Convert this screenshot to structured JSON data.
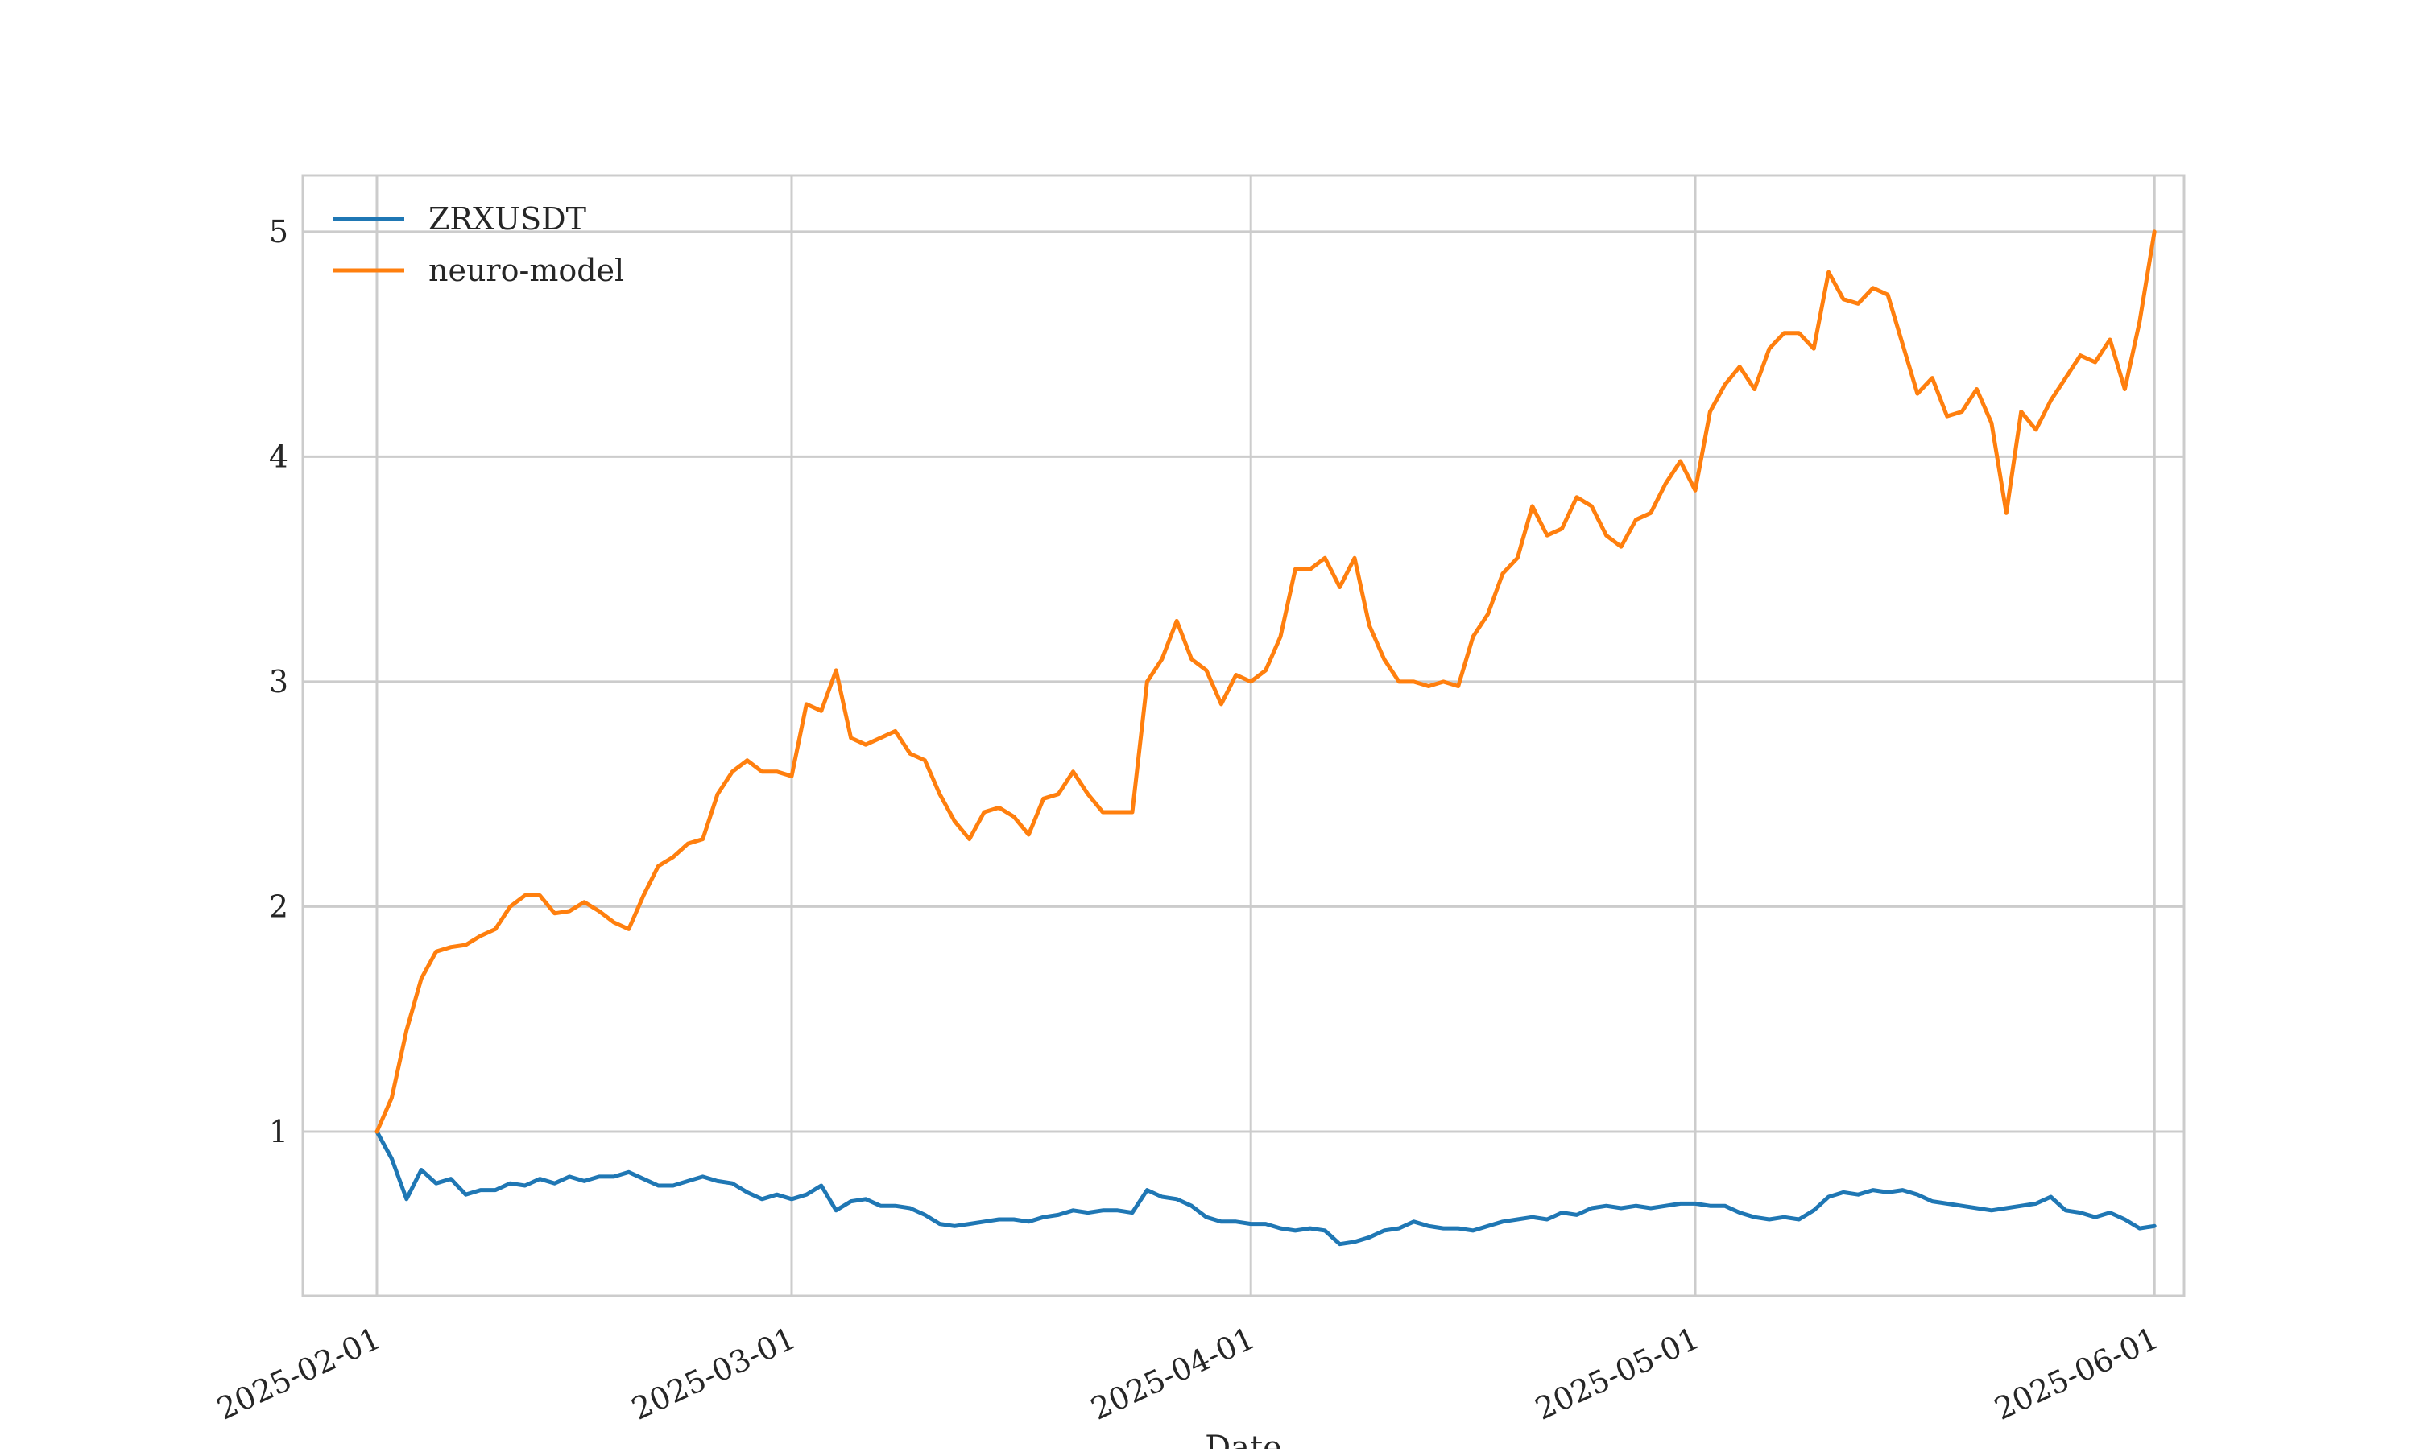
{
  "chart_data": {
    "type": "line",
    "title": "",
    "xlabel": "Date",
    "ylabel": "",
    "xlim": [
      "2025-01-27",
      "2025-06-03"
    ],
    "ylim": [
      0.27,
      5.25
    ],
    "x_ticks": [
      "2025-02-01",
      "2025-03-01",
      "2025-04-01",
      "2025-05-01",
      "2025-06-01"
    ],
    "y_ticks": [
      1,
      2,
      3,
      4,
      5
    ],
    "y_tick_labels": [
      "1",
      "2",
      "3",
      "4",
      "5"
    ],
    "grid": true,
    "legend_position": "upper-left",
    "series": [
      {
        "name": "ZRXUSDT",
        "color": "#1f77b4",
        "points": [
          [
            "2025-02-01",
            1.0
          ],
          [
            "2025-02-02",
            0.88
          ],
          [
            "2025-02-03",
            0.7
          ],
          [
            "2025-02-04",
            0.83
          ],
          [
            "2025-02-05",
            0.77
          ],
          [
            "2025-02-06",
            0.79
          ],
          [
            "2025-02-07",
            0.72
          ],
          [
            "2025-02-08",
            0.74
          ],
          [
            "2025-02-09",
            0.74
          ],
          [
            "2025-02-10",
            0.77
          ],
          [
            "2025-02-11",
            0.76
          ],
          [
            "2025-02-12",
            0.79
          ],
          [
            "2025-02-13",
            0.77
          ],
          [
            "2025-02-14",
            0.8
          ],
          [
            "2025-02-15",
            0.78
          ],
          [
            "2025-02-16",
            0.8
          ],
          [
            "2025-02-17",
            0.8
          ],
          [
            "2025-02-18",
            0.82
          ],
          [
            "2025-02-19",
            0.79
          ],
          [
            "2025-02-20",
            0.76
          ],
          [
            "2025-02-21",
            0.76
          ],
          [
            "2025-02-22",
            0.78
          ],
          [
            "2025-02-23",
            0.8
          ],
          [
            "2025-02-24",
            0.78
          ],
          [
            "2025-02-25",
            0.77
          ],
          [
            "2025-02-26",
            0.73
          ],
          [
            "2025-02-27",
            0.7
          ],
          [
            "2025-02-28",
            0.72
          ],
          [
            "2025-03-01",
            0.7
          ],
          [
            "2025-03-02",
            0.72
          ],
          [
            "2025-03-03",
            0.76
          ],
          [
            "2025-03-04",
            0.65
          ],
          [
            "2025-03-05",
            0.69
          ],
          [
            "2025-03-06",
            0.7
          ],
          [
            "2025-03-07",
            0.67
          ],
          [
            "2025-03-08",
            0.67
          ],
          [
            "2025-03-09",
            0.66
          ],
          [
            "2025-03-10",
            0.63
          ],
          [
            "2025-03-11",
            0.59
          ],
          [
            "2025-03-12",
            0.58
          ],
          [
            "2025-03-13",
            0.59
          ],
          [
            "2025-03-14",
            0.6
          ],
          [
            "2025-03-15",
            0.61
          ],
          [
            "2025-03-16",
            0.61
          ],
          [
            "2025-03-17",
            0.6
          ],
          [
            "2025-03-18",
            0.62
          ],
          [
            "2025-03-19",
            0.63
          ],
          [
            "2025-03-20",
            0.65
          ],
          [
            "2025-03-21",
            0.64
          ],
          [
            "2025-03-22",
            0.65
          ],
          [
            "2025-03-23",
            0.65
          ],
          [
            "2025-03-24",
            0.64
          ],
          [
            "2025-03-25",
            0.74
          ],
          [
            "2025-03-26",
            0.71
          ],
          [
            "2025-03-27",
            0.7
          ],
          [
            "2025-03-28",
            0.67
          ],
          [
            "2025-03-29",
            0.62
          ],
          [
            "2025-03-30",
            0.6
          ],
          [
            "2025-03-31",
            0.6
          ],
          [
            "2025-04-01",
            0.59
          ],
          [
            "2025-04-02",
            0.59
          ],
          [
            "2025-04-03",
            0.57
          ],
          [
            "2025-04-04",
            0.56
          ],
          [
            "2025-04-05",
            0.57
          ],
          [
            "2025-04-06",
            0.56
          ],
          [
            "2025-04-07",
            0.5
          ],
          [
            "2025-04-08",
            0.51
          ],
          [
            "2025-04-09",
            0.53
          ],
          [
            "2025-04-10",
            0.56
          ],
          [
            "2025-04-11",
            0.57
          ],
          [
            "2025-04-12",
            0.6
          ],
          [
            "2025-04-13",
            0.58
          ],
          [
            "2025-04-14",
            0.57
          ],
          [
            "2025-04-15",
            0.57
          ],
          [
            "2025-04-16",
            0.56
          ],
          [
            "2025-04-17",
            0.58
          ],
          [
            "2025-04-18",
            0.6
          ],
          [
            "2025-04-19",
            0.61
          ],
          [
            "2025-04-20",
            0.62
          ],
          [
            "2025-04-21",
            0.61
          ],
          [
            "2025-04-22",
            0.64
          ],
          [
            "2025-04-23",
            0.63
          ],
          [
            "2025-04-24",
            0.66
          ],
          [
            "2025-04-25",
            0.67
          ],
          [
            "2025-04-26",
            0.66
          ],
          [
            "2025-04-27",
            0.67
          ],
          [
            "2025-04-28",
            0.66
          ],
          [
            "2025-04-29",
            0.67
          ],
          [
            "2025-04-30",
            0.68
          ],
          [
            "2025-05-01",
            0.68
          ],
          [
            "2025-05-02",
            0.67
          ],
          [
            "2025-05-03",
            0.67
          ],
          [
            "2025-05-04",
            0.64
          ],
          [
            "2025-05-05",
            0.62
          ],
          [
            "2025-05-06",
            0.61
          ],
          [
            "2025-05-07",
            0.62
          ],
          [
            "2025-05-08",
            0.61
          ],
          [
            "2025-05-09",
            0.65
          ],
          [
            "2025-05-10",
            0.71
          ],
          [
            "2025-05-11",
            0.73
          ],
          [
            "2025-05-12",
            0.72
          ],
          [
            "2025-05-13",
            0.74
          ],
          [
            "2025-05-14",
            0.73
          ],
          [
            "2025-05-15",
            0.74
          ],
          [
            "2025-05-16",
            0.72
          ],
          [
            "2025-05-17",
            0.69
          ],
          [
            "2025-05-18",
            0.68
          ],
          [
            "2025-05-19",
            0.67
          ],
          [
            "2025-05-20",
            0.66
          ],
          [
            "2025-05-21",
            0.65
          ],
          [
            "2025-05-22",
            0.66
          ],
          [
            "2025-05-23",
            0.67
          ],
          [
            "2025-05-24",
            0.68
          ],
          [
            "2025-05-25",
            0.71
          ],
          [
            "2025-05-26",
            0.65
          ],
          [
            "2025-05-27",
            0.64
          ],
          [
            "2025-05-28",
            0.62
          ],
          [
            "2025-05-29",
            0.64
          ],
          [
            "2025-05-30",
            0.61
          ],
          [
            "2025-05-31",
            0.57
          ],
          [
            "2025-06-01",
            0.58
          ]
        ]
      },
      {
        "name": "neuro-model",
        "color": "#ff7f0e",
        "points": [
          [
            "2025-02-01",
            1.0
          ],
          [
            "2025-02-02",
            1.15
          ],
          [
            "2025-02-03",
            1.45
          ],
          [
            "2025-02-04",
            1.68
          ],
          [
            "2025-02-05",
            1.8
          ],
          [
            "2025-02-06",
            1.82
          ],
          [
            "2025-02-07",
            1.83
          ],
          [
            "2025-02-08",
            1.87
          ],
          [
            "2025-02-09",
            1.9
          ],
          [
            "2025-02-10",
            2.0
          ],
          [
            "2025-02-11",
            2.05
          ],
          [
            "2025-02-12",
            2.05
          ],
          [
            "2025-02-13",
            1.97
          ],
          [
            "2025-02-14",
            1.98
          ],
          [
            "2025-02-15",
            2.02
          ],
          [
            "2025-02-16",
            1.98
          ],
          [
            "2025-02-17",
            1.93
          ],
          [
            "2025-02-18",
            1.9
          ],
          [
            "2025-02-19",
            2.05
          ],
          [
            "2025-02-20",
            2.18
          ],
          [
            "2025-02-21",
            2.22
          ],
          [
            "2025-02-22",
            2.28
          ],
          [
            "2025-02-23",
            2.3
          ],
          [
            "2025-02-24",
            2.5
          ],
          [
            "2025-02-25",
            2.6
          ],
          [
            "2025-02-26",
            2.65
          ],
          [
            "2025-02-27",
            2.6
          ],
          [
            "2025-02-28",
            2.6
          ],
          [
            "2025-03-01",
            2.58
          ],
          [
            "2025-03-02",
            2.9
          ],
          [
            "2025-03-03",
            2.87
          ],
          [
            "2025-03-04",
            3.05
          ],
          [
            "2025-03-05",
            2.75
          ],
          [
            "2025-03-06",
            2.72
          ],
          [
            "2025-03-07",
            2.75
          ],
          [
            "2025-03-08",
            2.78
          ],
          [
            "2025-03-09",
            2.68
          ],
          [
            "2025-03-10",
            2.65
          ],
          [
            "2025-03-11",
            2.5
          ],
          [
            "2025-03-12",
            2.38
          ],
          [
            "2025-03-13",
            2.3
          ],
          [
            "2025-03-14",
            2.42
          ],
          [
            "2025-03-15",
            2.44
          ],
          [
            "2025-03-16",
            2.4
          ],
          [
            "2025-03-17",
            2.32
          ],
          [
            "2025-03-18",
            2.48
          ],
          [
            "2025-03-19",
            2.5
          ],
          [
            "2025-03-20",
            2.6
          ],
          [
            "2025-03-21",
            2.5
          ],
          [
            "2025-03-22",
            2.42
          ],
          [
            "2025-03-23",
            2.42
          ],
          [
            "2025-03-24",
            2.42
          ],
          [
            "2025-03-25",
            3.0
          ],
          [
            "2025-03-26",
            3.1
          ],
          [
            "2025-03-27",
            3.27
          ],
          [
            "2025-03-28",
            3.1
          ],
          [
            "2025-03-29",
            3.05
          ],
          [
            "2025-03-30",
            2.9
          ],
          [
            "2025-03-31",
            3.03
          ],
          [
            "2025-04-01",
            3.0
          ],
          [
            "2025-04-02",
            3.05
          ],
          [
            "2025-04-03",
            3.2
          ],
          [
            "2025-04-04",
            3.5
          ],
          [
            "2025-04-05",
            3.5
          ],
          [
            "2025-04-06",
            3.55
          ],
          [
            "2025-04-07",
            3.42
          ],
          [
            "2025-04-08",
            3.55
          ],
          [
            "2025-04-09",
            3.25
          ],
          [
            "2025-04-10",
            3.1
          ],
          [
            "2025-04-11",
            3.0
          ],
          [
            "2025-04-12",
            3.0
          ],
          [
            "2025-04-13",
            2.98
          ],
          [
            "2025-04-14",
            3.0
          ],
          [
            "2025-04-15",
            2.98
          ],
          [
            "2025-04-16",
            3.2
          ],
          [
            "2025-04-17",
            3.3
          ],
          [
            "2025-04-18",
            3.48
          ],
          [
            "2025-04-19",
            3.55
          ],
          [
            "2025-04-20",
            3.78
          ],
          [
            "2025-04-21",
            3.65
          ],
          [
            "2025-04-22",
            3.68
          ],
          [
            "2025-04-23",
            3.82
          ],
          [
            "2025-04-24",
            3.78
          ],
          [
            "2025-04-25",
            3.65
          ],
          [
            "2025-04-26",
            3.6
          ],
          [
            "2025-04-27",
            3.72
          ],
          [
            "2025-04-28",
            3.75
          ],
          [
            "2025-04-29",
            3.88
          ],
          [
            "2025-04-30",
            3.98
          ],
          [
            "2025-05-01",
            3.85
          ],
          [
            "2025-05-02",
            4.2
          ],
          [
            "2025-05-03",
            4.32
          ],
          [
            "2025-05-04",
            4.4
          ],
          [
            "2025-05-05",
            4.3
          ],
          [
            "2025-05-06",
            4.48
          ],
          [
            "2025-05-07",
            4.55
          ],
          [
            "2025-05-08",
            4.55
          ],
          [
            "2025-05-09",
            4.48
          ],
          [
            "2025-05-10",
            4.82
          ],
          [
            "2025-05-11",
            4.7
          ],
          [
            "2025-05-12",
            4.68
          ],
          [
            "2025-05-13",
            4.75
          ],
          [
            "2025-05-14",
            4.72
          ],
          [
            "2025-05-15",
            4.5
          ],
          [
            "2025-05-16",
            4.28
          ],
          [
            "2025-05-17",
            4.35
          ],
          [
            "2025-05-18",
            4.18
          ],
          [
            "2025-05-19",
            4.2
          ],
          [
            "2025-05-20",
            4.3
          ],
          [
            "2025-05-21",
            4.15
          ],
          [
            "2025-05-22",
            3.75
          ],
          [
            "2025-05-23",
            4.2
          ],
          [
            "2025-05-24",
            4.12
          ],
          [
            "2025-05-25",
            4.25
          ],
          [
            "2025-05-26",
            4.35
          ],
          [
            "2025-05-27",
            4.45
          ],
          [
            "2025-05-28",
            4.42
          ],
          [
            "2025-05-29",
            4.52
          ],
          [
            "2025-05-30",
            4.3
          ],
          [
            "2025-05-31",
            4.6
          ],
          [
            "2025-06-01",
            5.0
          ]
        ]
      }
    ]
  }
}
